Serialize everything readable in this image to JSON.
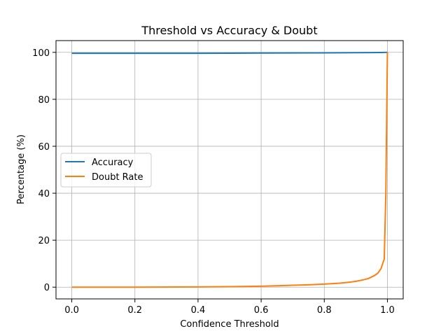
{
  "chart_data": {
    "type": "line",
    "title": "Threshold vs Accuracy & Doubt",
    "xlabel": "Confidence Threshold",
    "ylabel": "Percentage (%)",
    "xlim": [
      -0.05,
      1.05
    ],
    "ylim": [
      -5,
      105
    ],
    "xticks": [
      0.0,
      0.2,
      0.4,
      0.6,
      0.8,
      1.0
    ],
    "xtick_labels": [
      "0.0",
      "0.2",
      "0.4",
      "0.6",
      "0.8",
      "1.0"
    ],
    "yticks": [
      0,
      20,
      40,
      60,
      80,
      100
    ],
    "ytick_labels": [
      "0",
      "20",
      "40",
      "60",
      "80",
      "100"
    ],
    "grid": true,
    "legend_position": "center-left",
    "series": [
      {
        "name": "Accuracy",
        "color": "#1f77b4",
        "x": [
          0.0,
          0.2,
          0.4,
          0.5,
          0.6,
          0.7,
          0.8,
          0.9,
          0.95,
          0.98,
          1.0
        ],
        "y": [
          99.6,
          99.6,
          99.6,
          99.65,
          99.7,
          99.75,
          99.8,
          99.85,
          99.9,
          99.95,
          100.0
        ]
      },
      {
        "name": "Doubt Rate",
        "color": "#ff7f0e",
        "x": [
          0.0,
          0.2,
          0.4,
          0.5,
          0.6,
          0.65,
          0.7,
          0.75,
          0.8,
          0.85,
          0.88,
          0.9,
          0.92,
          0.94,
          0.96,
          0.97,
          0.98,
          0.99,
          0.995,
          1.0
        ],
        "y": [
          0.0,
          0.0,
          0.1,
          0.2,
          0.4,
          0.6,
          0.8,
          1.0,
          1.3,
          1.7,
          2.1,
          2.5,
          3.0,
          3.7,
          5.0,
          6.0,
          8.0,
          12.0,
          40.0,
          100.0
        ]
      }
    ]
  }
}
